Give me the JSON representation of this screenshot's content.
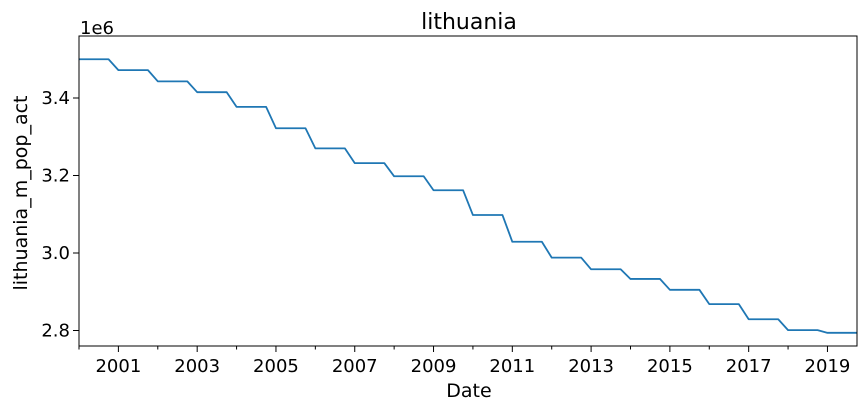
{
  "chart_data": {
    "type": "line",
    "title": "lithuania",
    "xlabel": "Date",
    "ylabel": "lithuania_m_pop_act",
    "y_offset_label": "1e6",
    "xlim": [
      "2000-01-01",
      "2019-10-01"
    ],
    "ylim": [
      2760000,
      3560000
    ],
    "x_ticks": [
      "2001",
      "2003",
      "2005",
      "2007",
      "2009",
      "2011",
      "2013",
      "2015",
      "2017",
      "2019"
    ],
    "y_ticks": [
      {
        "value": 2800000,
        "label": "2.8"
      },
      {
        "value": 3000000,
        "label": "3.0"
      },
      {
        "value": 3200000,
        "label": "3.2"
      },
      {
        "value": 3400000,
        "label": "3.4"
      }
    ],
    "grid": false,
    "series": [
      {
        "color": "#1f77b4",
        "points": [
          [
            "2000-01-01",
            3500000
          ],
          [
            "2000-10-01",
            3500000
          ],
          [
            "2001-01-01",
            3472000
          ],
          [
            "2001-10-01",
            3472000
          ],
          [
            "2002-01-01",
            3443000
          ],
          [
            "2002-10-01",
            3443000
          ],
          [
            "2003-01-01",
            3415000
          ],
          [
            "2003-10-01",
            3415000
          ],
          [
            "2004-01-01",
            3377000
          ],
          [
            "2004-10-01",
            3377000
          ],
          [
            "2005-01-01",
            3322000
          ],
          [
            "2005-10-01",
            3322000
          ],
          [
            "2006-01-01",
            3270000
          ],
          [
            "2006-10-01",
            3270000
          ],
          [
            "2007-01-01",
            3232000
          ],
          [
            "2007-10-01",
            3232000
          ],
          [
            "2008-01-01",
            3198000
          ],
          [
            "2008-10-01",
            3198000
          ],
          [
            "2009-01-01",
            3162000
          ],
          [
            "2009-10-01",
            3162000
          ],
          [
            "2010-01-01",
            3098000
          ],
          [
            "2010-10-01",
            3098000
          ],
          [
            "2011-01-01",
            3029000
          ],
          [
            "2011-10-01",
            3029000
          ],
          [
            "2012-01-01",
            2988000
          ],
          [
            "2012-10-01",
            2988000
          ],
          [
            "2013-01-01",
            2958000
          ],
          [
            "2013-10-01",
            2958000
          ],
          [
            "2014-01-01",
            2933000
          ],
          [
            "2014-10-01",
            2933000
          ],
          [
            "2015-01-01",
            2905000
          ],
          [
            "2015-10-01",
            2905000
          ],
          [
            "2016-01-01",
            2868000
          ],
          [
            "2016-10-01",
            2868000
          ],
          [
            "2017-01-01",
            2829000
          ],
          [
            "2017-10-01",
            2829000
          ],
          [
            "2018-01-01",
            2801000
          ],
          [
            "2018-10-01",
            2801000
          ],
          [
            "2019-01-01",
            2794000
          ],
          [
            "2019-10-01",
            2794000
          ]
        ]
      }
    ]
  }
}
